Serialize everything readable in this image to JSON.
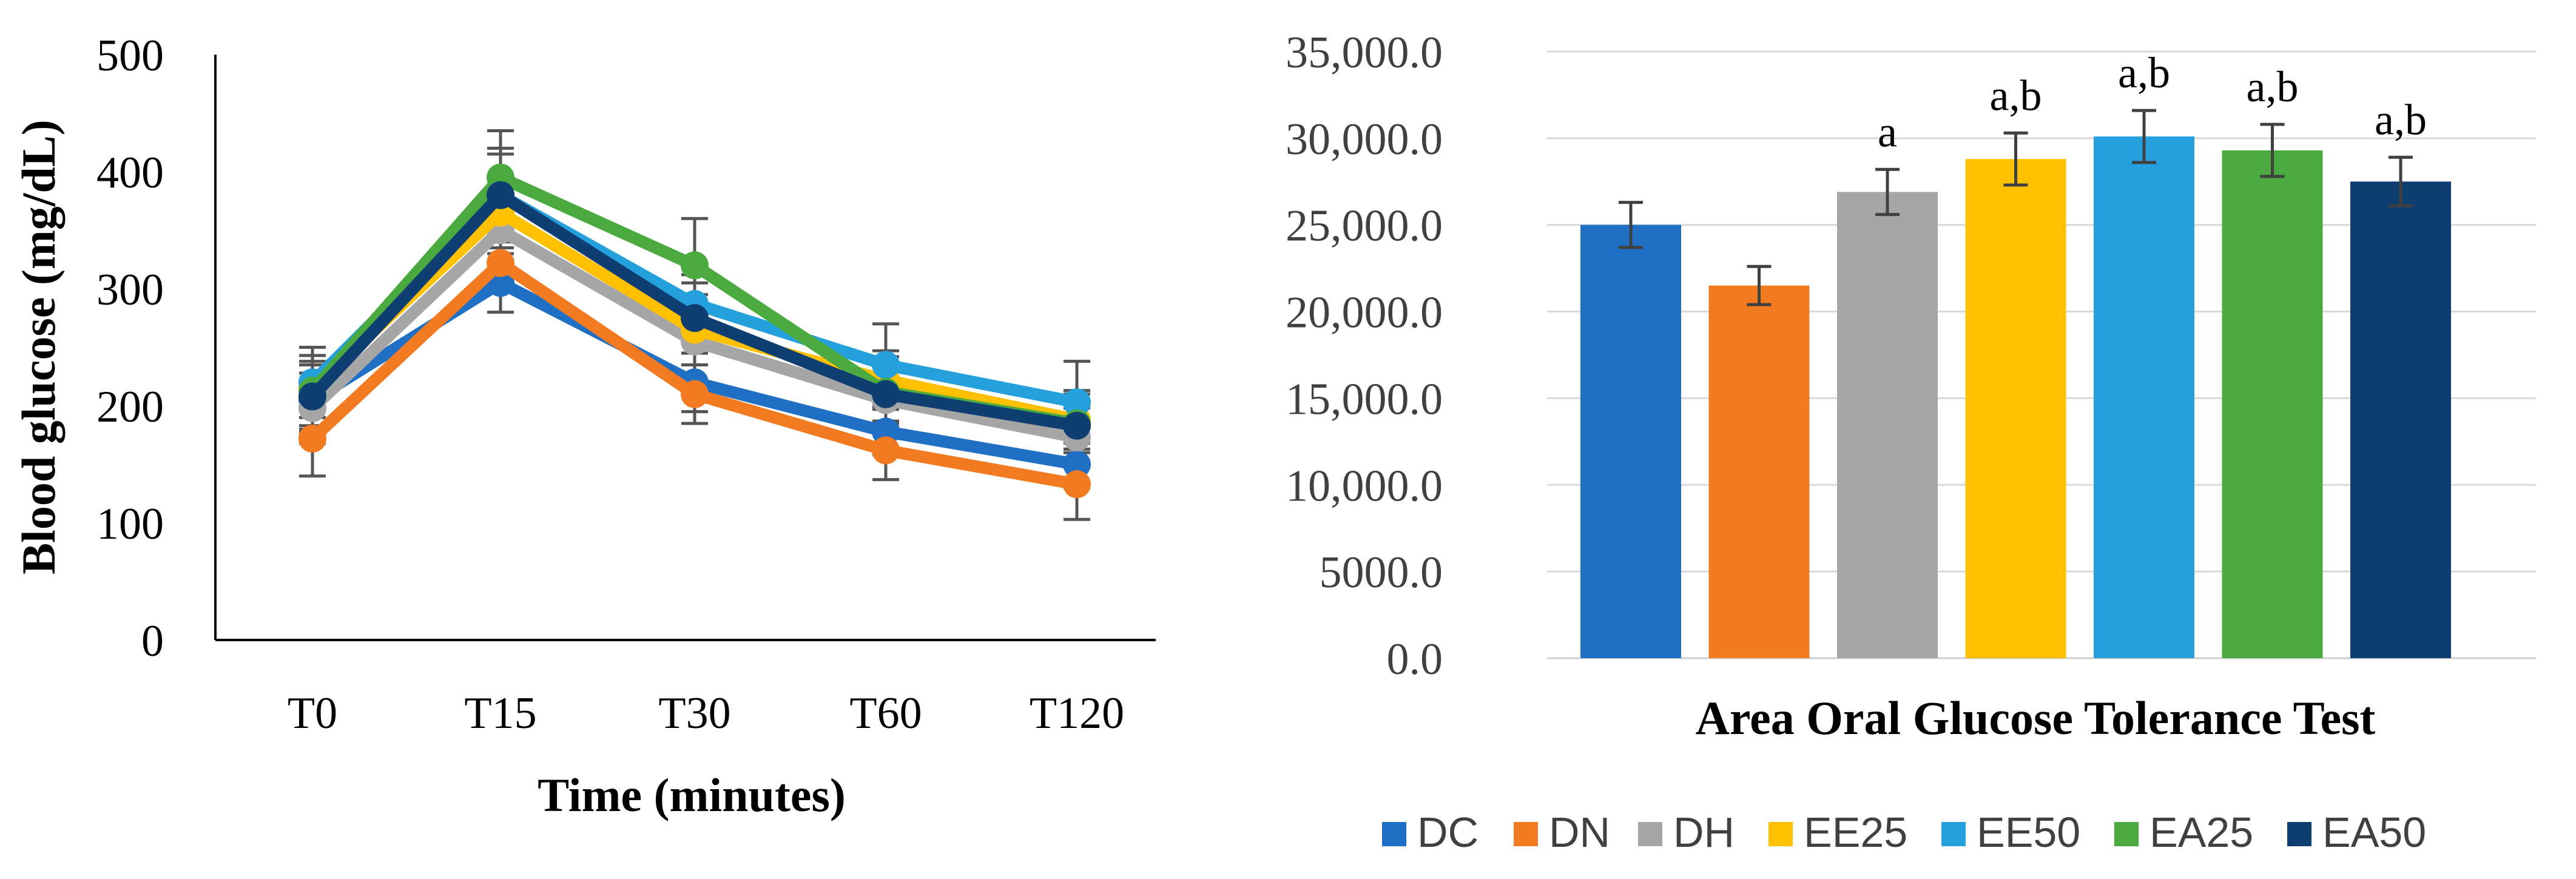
{
  "chart_data": [
    {
      "type": "line",
      "title": "",
      "xlabel": "Time (minutes)",
      "ylabel": "Blood glucose (mg/dL)",
      "categories": [
        "T0",
        "T15",
        "T30",
        "T60",
        "T120"
      ],
      "ylim": [
        0,
        500
      ],
      "yticks": [
        "0",
        "100",
        "200",
        "300",
        "400",
        "500"
      ],
      "grid": false,
      "series": [
        {
          "name": "DC",
          "color": "#1f6fc5",
          "values": [
            205,
            305,
            220,
            178,
            150
          ],
          "errors": [
            30,
            25,
            25,
            20,
            20
          ]
        },
        {
          "name": "DN",
          "color": "#f27b22",
          "values": [
            172,
            322,
            210,
            162,
            133
          ],
          "errors": [
            32,
            25,
            25,
            25,
            30
          ]
        },
        {
          "name": "DH",
          "color": "#a6a6a6",
          "values": [
            198,
            350,
            255,
            205,
            173
          ],
          "errors": [
            30,
            30,
            20,
            20,
            25
          ]
        },
        {
          "name": "EE25",
          "color": "#ffc000",
          "values": [
            215,
            365,
            265,
            222,
            188
          ],
          "errors": [
            35,
            30,
            30,
            25,
            25
          ]
        },
        {
          "name": "EE50",
          "color": "#24a0dc",
          "values": [
            220,
            380,
            287,
            235,
            203
          ],
          "errors": [
            30,
            35,
            25,
            35,
            35
          ]
        },
        {
          "name": "EA25",
          "color": "#4aaa3f",
          "values": [
            213,
            395,
            320,
            212,
            185
          ],
          "errors": [
            30,
            40,
            40,
            30,
            25
          ]
        },
        {
          "name": "EA50",
          "color": "#0f3e73",
          "values": [
            208,
            380,
            275,
            210,
            183
          ],
          "errors": [
            30,
            40,
            30,
            25,
            30
          ]
        }
      ]
    },
    {
      "type": "bar",
      "title": "",
      "xlabel": "Area Oral Glucose Tolerance Test",
      "ylabel": "",
      "categories": [
        "DC",
        "DN",
        "DH",
        "EE25",
        "EE50",
        "EA25",
        "EA50"
      ],
      "values": [
        25000,
        21500,
        26900,
        28800,
        30100,
        29300,
        27500
      ],
      "errors": [
        1300,
        1100,
        1300,
        1500,
        1500,
        1500,
        1400
      ],
      "annotations": [
        "",
        "",
        "a",
        "a,b",
        "a,b",
        "a,b",
        "a,b"
      ],
      "colors": [
        "#1f6fc5",
        "#f27b22",
        "#a6a6a6",
        "#ffc000",
        "#24a0dc",
        "#4aaa3f",
        "#0f3e73"
      ],
      "ylim": [
        0,
        35000
      ],
      "yticks": [
        "0.0",
        "5000.0",
        "10,000.0",
        "15,000.0",
        "20,000.0",
        "25,000.0",
        "30,000.0",
        "35,000.0"
      ],
      "grid": true,
      "legend_position": "bottom"
    }
  ]
}
